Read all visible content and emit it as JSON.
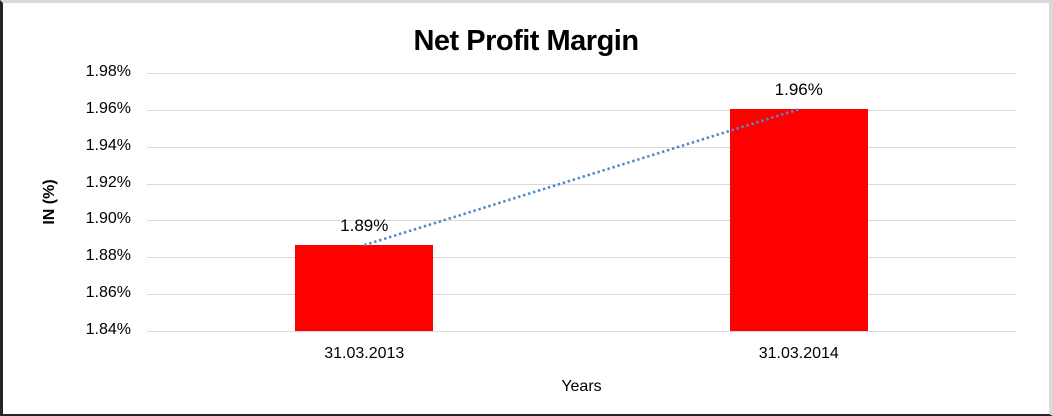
{
  "chart_data": {
    "type": "bar",
    "title": "Net Profit Margin",
    "xlabel": "Years",
    "ylabel": "IN (%)",
    "categories": [
      "31.03.2013",
      "31.03.2014"
    ],
    "values": [
      1.8866,
      1.9603
    ],
    "data_labels": [
      "1.89%",
      "1.96%"
    ],
    "series_name": "Net Profit Margin",
    "y_ticks": [
      {
        "value": 1.98,
        "label": "1.98%"
      },
      {
        "value": 1.96,
        "label": "1.96%"
      },
      {
        "value": 1.94,
        "label": "1.94%"
      },
      {
        "value": 1.92,
        "label": "1.92%"
      },
      {
        "value": 1.9,
        "label": "1.90%"
      },
      {
        "value": 1.88,
        "label": "1.88%"
      },
      {
        "value": 1.86,
        "label": "1.86%"
      },
      {
        "value": 1.84,
        "label": "1.84%"
      }
    ],
    "ylim": [
      1.84,
      1.98
    ],
    "grid": true,
    "legend_position": "none",
    "trendline": {
      "type": "linear",
      "style": "dotted",
      "color": "#4E8AC9"
    },
    "colors": {
      "bar": "#ff0000",
      "gridline": "#d9d9d9",
      "text": "#000000",
      "chart_border": "#d9d9d9",
      "outer_border": "#262626"
    }
  }
}
